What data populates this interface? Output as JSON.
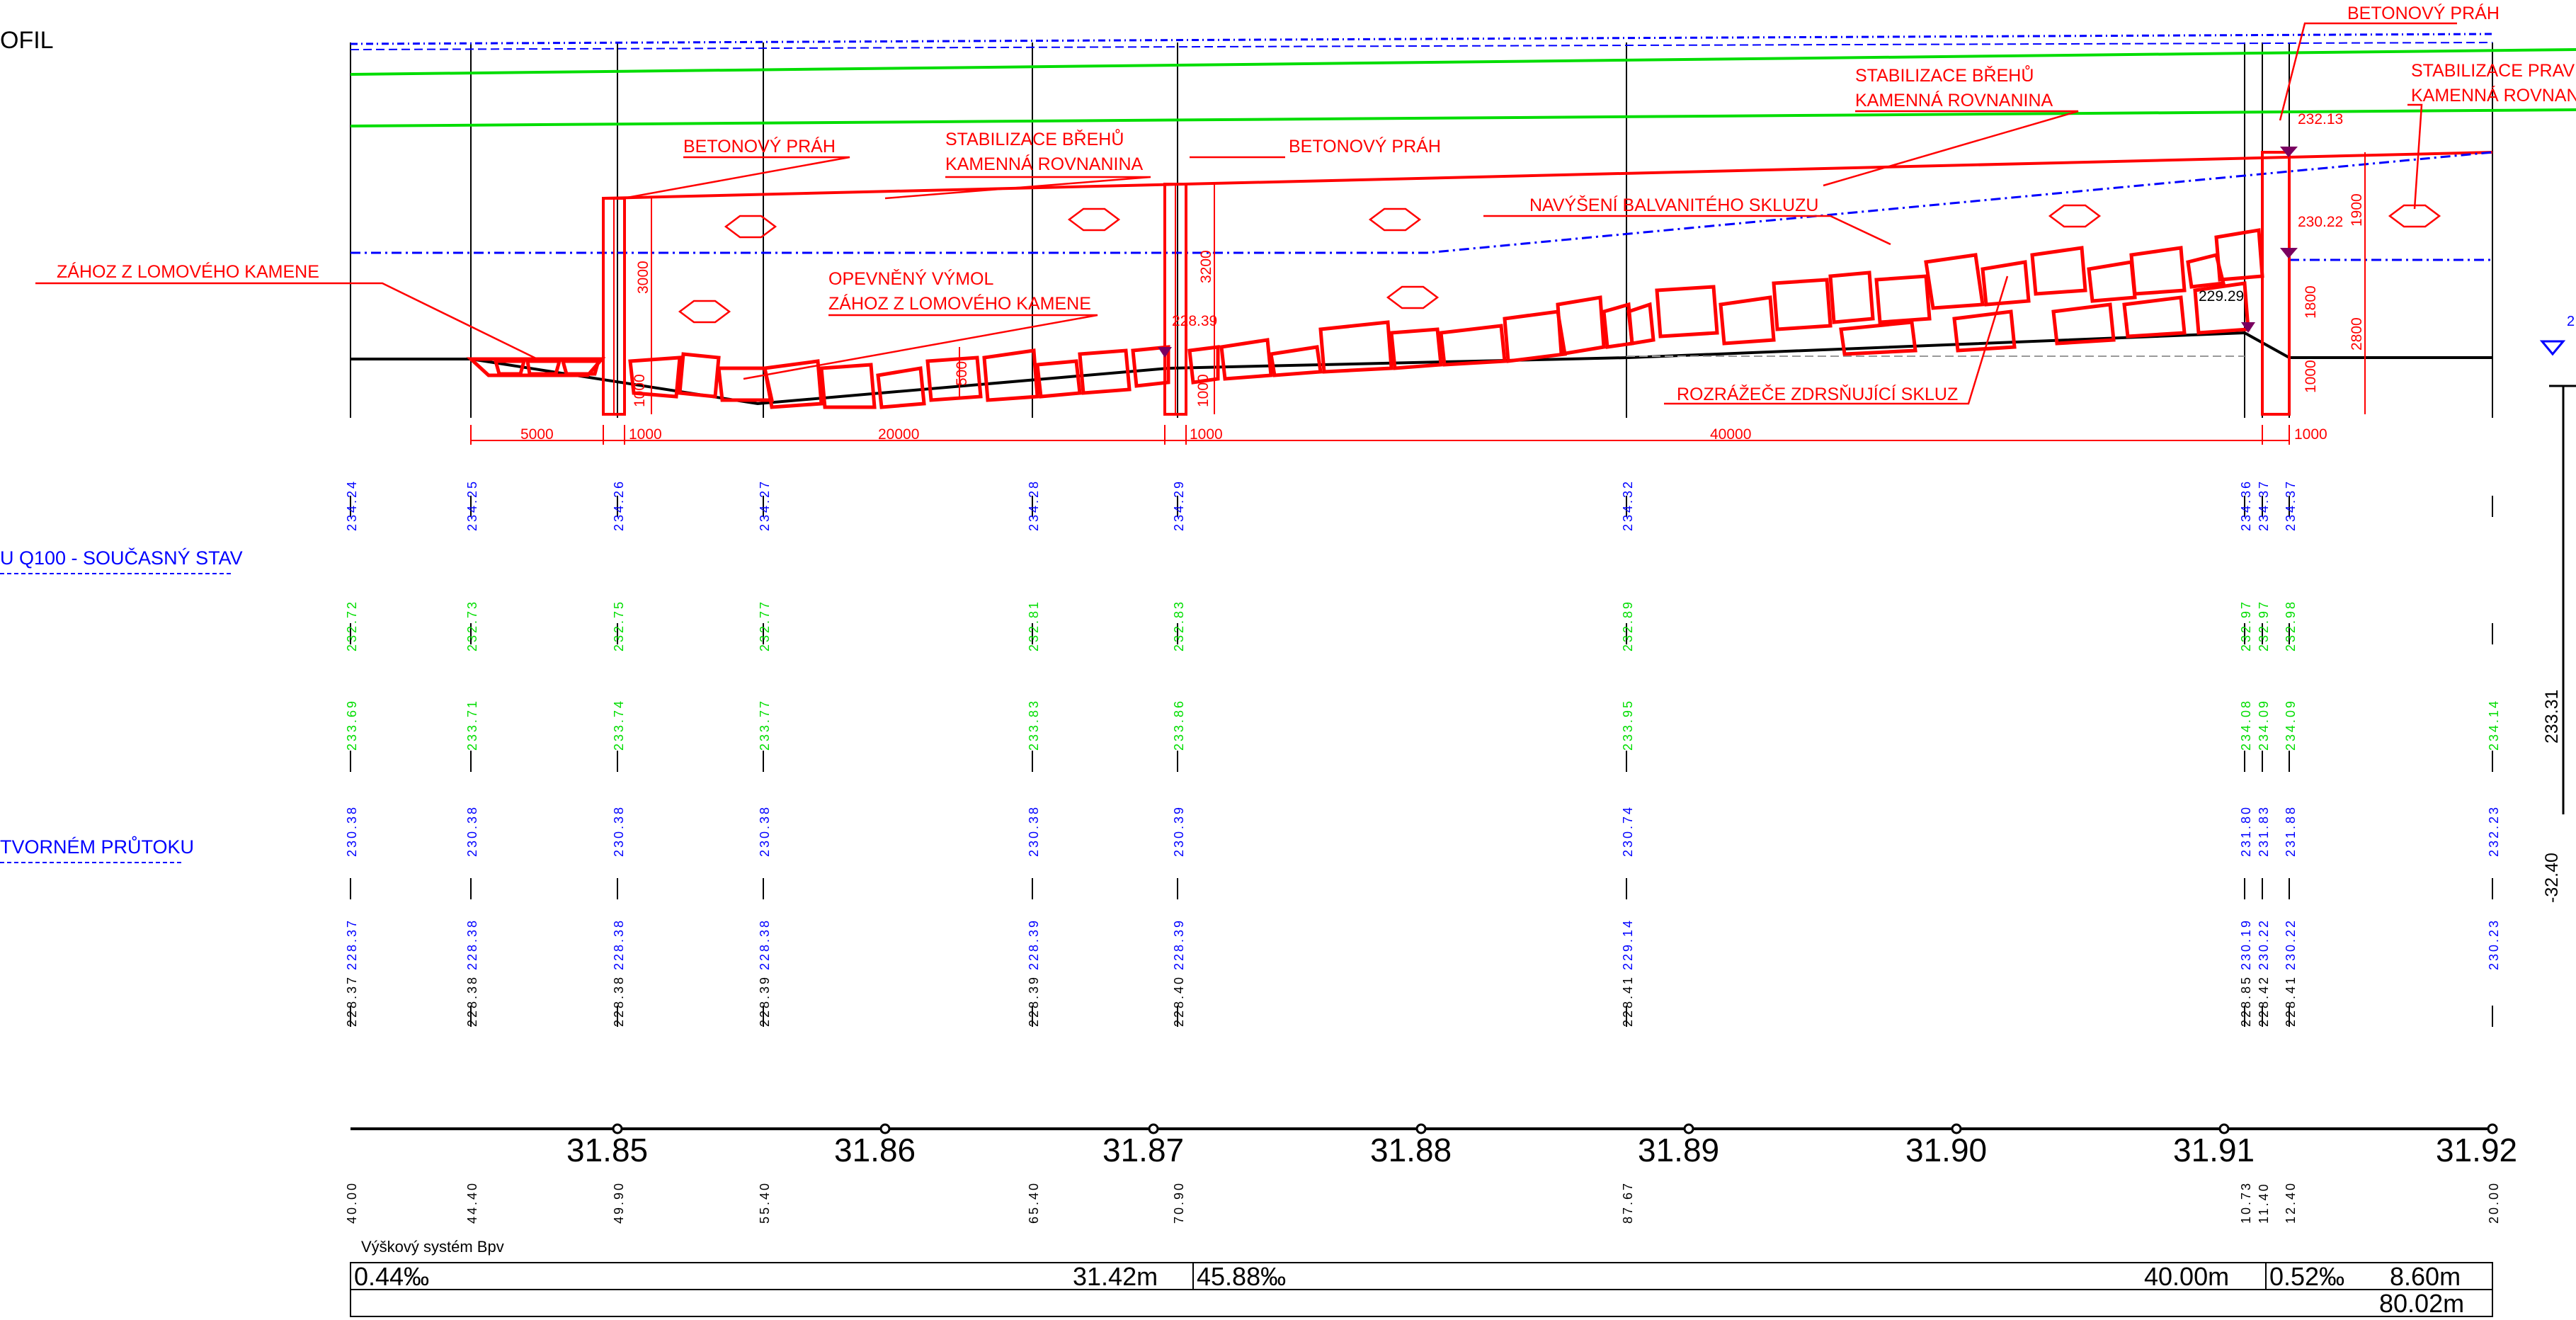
{
  "colors": {
    "profile": "#ff0000",
    "q100": "#0000ff",
    "green_line": "#00dd00",
    "black": "#000000",
    "grey": "#999999",
    "purple": "#7a0060"
  },
  "left_labels": {
    "title": "OFIL",
    "q100": "U Q100 - SOUČASNÝ STAV",
    "flow": "TVORNÉM PRŮTOKU"
  },
  "annotations": {
    "zahoz": "ZÁHOZ Z LOMOVÉHO KAMENE",
    "prah1": "BETONOVÝ PRÁH",
    "stab1_l1": "STABILIZACE BŘEHŮ",
    "stab1_l2": "KAMENNÁ ROVNANINA",
    "prah2": "BETONOVÝ PRÁH",
    "vymol_l1": "OPEVNĚNÝ VÝMOL",
    "vymol_l2": "ZÁHOZ Z LOMOVÉHO KAMENE",
    "stab2_l1": "STABILIZACE BŘEHŮ",
    "stab2_l2": "KAMENNÁ ROVNANINA",
    "navyseni": "NAVÝŠENÍ BALVANITÉHO SKLUZU",
    "rozrazece": "ROZRÁŽEČE ZDRSŇUJÍCÍ SKLUZ",
    "prah3": "BETONOVÝ PRÁH",
    "stab3_l1": "STABILIZACE PRAV",
    "stab3_l2": "KAMENNÁ ROVNAN"
  },
  "levels": {
    "l1": "228.39",
    "l2": "232.13",
    "l3": "230.22",
    "l4": "229.29"
  },
  "dimensions": {
    "d5000": "5000",
    "d1000a": "1000",
    "d20000": "20000",
    "d1000b": "1000",
    "d40000": "40000",
    "d1000c": "1000",
    "v3000": "3000",
    "v1000a": "1000",
    "v500": "500",
    "v3200": "3200",
    "v1000b": "1000",
    "v1900": "1900",
    "v1800": "1800",
    "v2800": "2800",
    "v1000c": "1000"
  },
  "stations": [
    {
      "row1": "234.24",
      "row2": "232.72",
      "row3": "233.69",
      "row4": "230.38",
      "row5": "228.37",
      "row6": "228.37",
      "dist": "40.00"
    },
    {
      "row1": "234.25",
      "row2": "232.73",
      "row3": "233.71",
      "row4": "230.38",
      "row5": "228.38",
      "row6": "228.38",
      "dist": "44.40"
    },
    {
      "row1": "234.26",
      "row2": "232.75",
      "row3": "233.74",
      "row4": "230.38",
      "row5": "228.38",
      "row6": "228.38",
      "dist": "49.90"
    },
    {
      "row1": "234.27",
      "row2": "232.77",
      "row3": "233.77",
      "row4": "230.38",
      "row5": "228.38",
      "row6": "228.39",
      "dist": "55.40"
    },
    {
      "row1": "234.28",
      "row2": "232.81",
      "row3": "233.83",
      "row4": "230.38",
      "row5": "228.39",
      "row6": "228.39",
      "dist": "65.40"
    },
    {
      "row1": "234.29",
      "row2": "232.83",
      "row3": "233.86",
      "row4": "230.39",
      "row5": "228.39",
      "row6": "228.40",
      "dist": "70.90"
    },
    {
      "row1": "234.32",
      "row2": "232.89",
      "row3": "233.95",
      "row4": "230.74",
      "row5": "229.14",
      "row6": "228.41",
      "dist": "87.67"
    },
    {
      "row1": "234.36",
      "row2": "232.97",
      "row3": "234.08",
      "row4": "231.80",
      "row5": "230.19",
      "row6": "228.85",
      "dist": "10.73"
    },
    {
      "row1": "234.37",
      "row2": "232.97",
      "row3": "234.09",
      "row4": "231.83",
      "row5": "230.22",
      "row6": "228.42",
      "dist": "11.40"
    },
    {
      "row1": "234.37",
      "row2": "232.98",
      "row3": "234.09",
      "row4": "231.88",
      "row5": "230.22",
      "row6": "228.41",
      "dist": "12.40"
    },
    {
      "row1": "",
      "row2": "",
      "row3": "234.14",
      "row4": "232.23",
      "row5": "230.23",
      "row6": "",
      "dist": "20.00"
    }
  ],
  "chainage": [
    "31.85",
    "31.86",
    "31.87",
    "31.88",
    "31.89",
    "31.90",
    "31.91",
    "31.92"
  ],
  "right_side": {
    "v1": "233.31",
    "v2": "-32.40",
    "v3": "2"
  },
  "footer": {
    "system": "Výškový systém Bpv",
    "slope1": "0.44‰",
    "len1": "31.42m",
    "slope2": "45.88‰",
    "len2": "40.00m",
    "slope3": "0.52‰",
    "len3": "8.60m",
    "total": "80.02m"
  }
}
